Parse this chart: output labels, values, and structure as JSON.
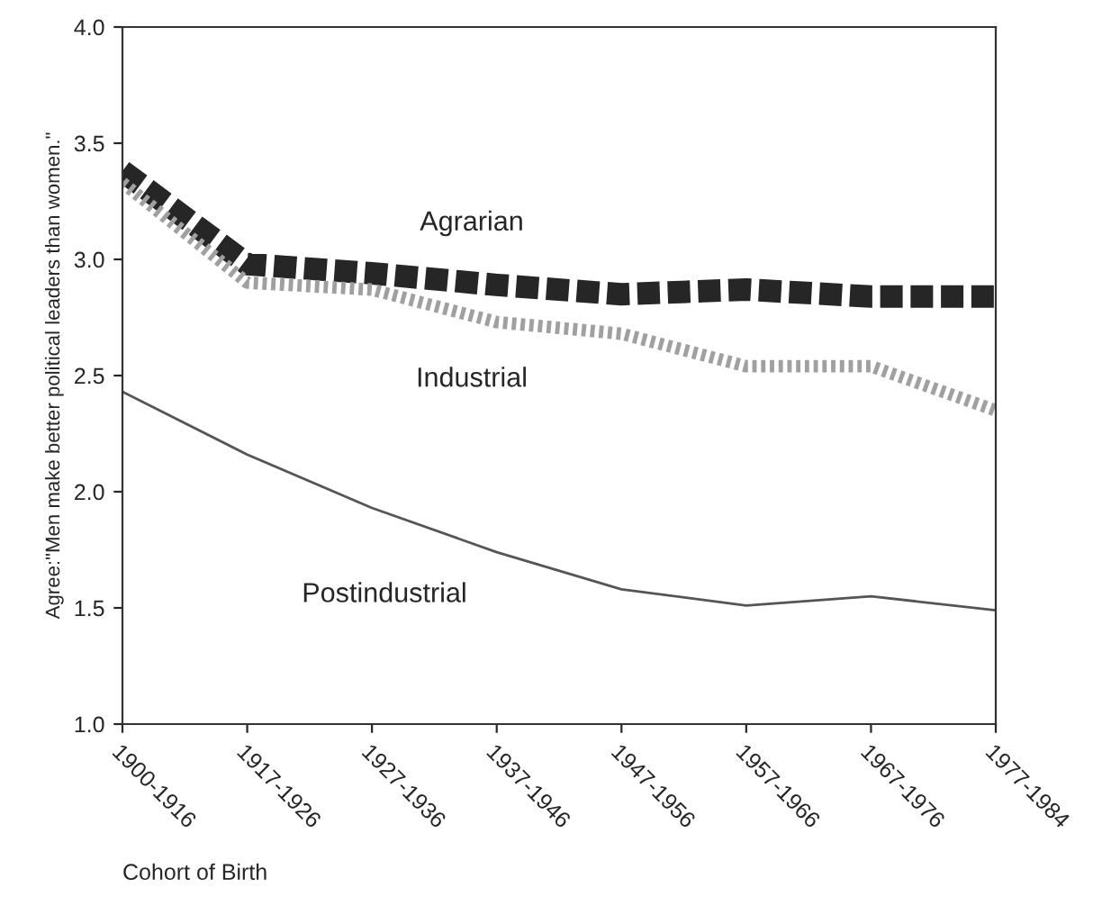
{
  "chart_data": {
    "type": "line",
    "xlabel": "Cohort of Birth",
    "ylabel": "Agree:\"Men make better political leaders than women.\"",
    "categories": [
      "1900-1916",
      "1917-1926",
      "1927-1936",
      "1937-1946",
      "1947-1956",
      "1957-1966",
      "1967-1976",
      "1977-1984"
    ],
    "series": [
      {
        "name": "Agrarian",
        "color": "#262626",
        "line_style": "dashed",
        "values": [
          3.38,
          2.98,
          2.94,
          2.89,
          2.85,
          2.87,
          2.84,
          2.84
        ]
      },
      {
        "name": "Industrial",
        "color": "#a0a0a0",
        "line_style": "dotted",
        "values": [
          3.33,
          2.9,
          2.87,
          2.73,
          2.68,
          2.54,
          2.54,
          2.35
        ]
      },
      {
        "name": "Postindustrial",
        "color": "#555555",
        "line_style": "solid",
        "values": [
          2.43,
          2.16,
          1.93,
          1.74,
          1.58,
          1.51,
          1.55,
          1.49
        ]
      }
    ],
    "ylim": [
      1.0,
      4.0
    ],
    "yticks": [
      {
        "value": 1.0,
        "label": "1.0"
      },
      {
        "value": 1.5,
        "label": "1.5"
      },
      {
        "value": 2.0,
        "label": "2.0"
      },
      {
        "value": 2.5,
        "label": "2.5"
      },
      {
        "value": 3.0,
        "label": "3.0"
      },
      {
        "value": 3.5,
        "label": "3.5"
      },
      {
        "value": 4.0,
        "label": "4.0"
      }
    ],
    "grid": false,
    "legend": false,
    "marker": "none"
  }
}
